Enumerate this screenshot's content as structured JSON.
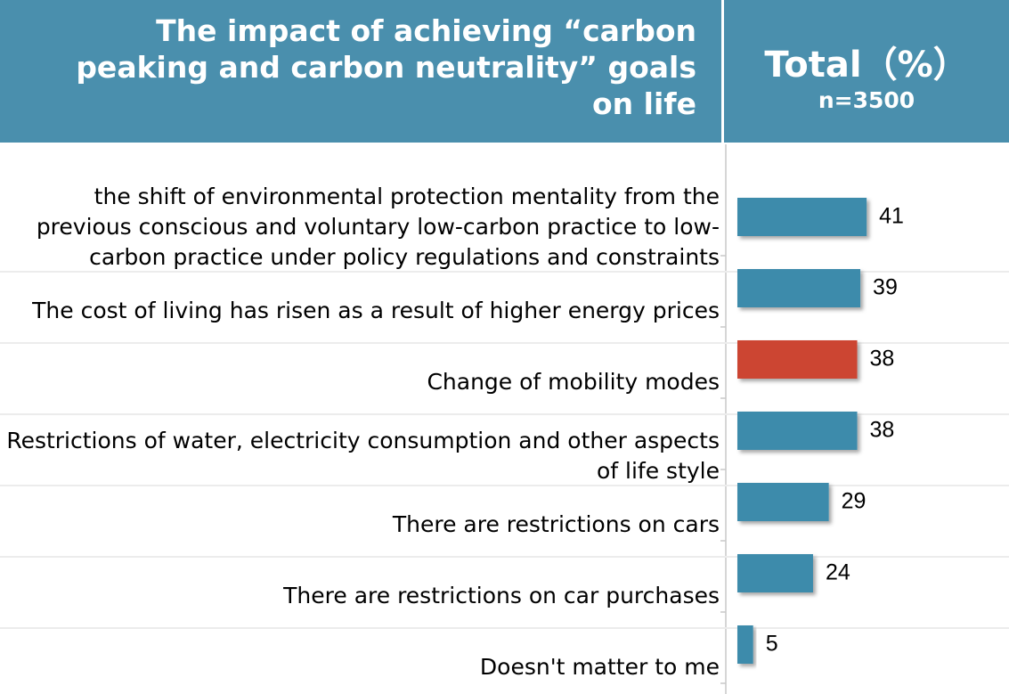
{
  "chart_data": {
    "type": "bar",
    "header": {
      "title": "The impact of achieving “carbon peaking and carbon neutrality” goals on life",
      "column": "Total（%）",
      "sample": "n=3500"
    },
    "categories": [
      "the shift of environmental protection mentality from the previous conscious and voluntary low-carbon practice to low-carbon practice under policy regulations and constraints",
      "The cost of living has risen as a result of higher energy prices",
      "Change of mobility modes",
      "Restrictions of water, electricity consumption and other aspects of life style",
      "There are restrictions on cars",
      "There are restrictions on car purchases",
      "Doesn't matter to me"
    ],
    "values": [
      41,
      39,
      38,
      38,
      29,
      24,
      5
    ],
    "colors": [
      "#3d8bab",
      "#3d8bab",
      "#cc4433",
      "#3d8bab",
      "#3d8bab",
      "#3d8bab",
      "#3d8bab"
    ]
  }
}
